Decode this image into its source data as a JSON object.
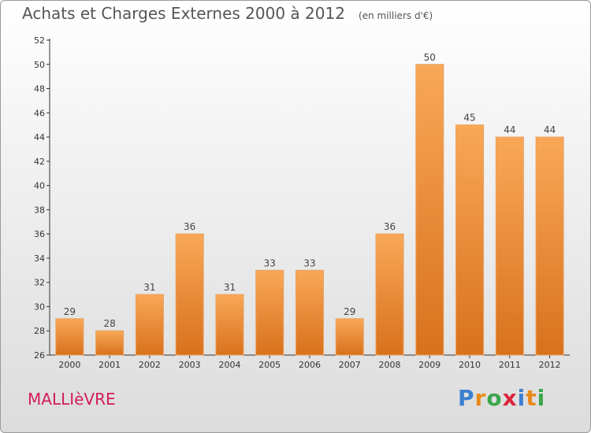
{
  "title": {
    "main": "Achats et Charges Externes 2000 à 2012",
    "unit": "(en milliers d'€)"
  },
  "commune": "MALLIèVRE",
  "brand": {
    "letters": [
      "P",
      "r",
      "o",
      "x",
      "i",
      "t",
      "i"
    ],
    "colors": [
      "#3a7fd0",
      "#e98a1a",
      "#3aa64a",
      "#d9263c",
      "#3a7fd0",
      "#e98a1a",
      "#3aa64a"
    ]
  },
  "colors": {
    "bar_light": "#f8a857",
    "bar_dark": "#d9711c",
    "axis": "#333333",
    "grid": "#cccccc"
  },
  "chart_data": {
    "type": "bar",
    "title": "Achats et Charges Externes 2000 à 2012",
    "categories": [
      "2000",
      "2001",
      "2002",
      "2003",
      "2004",
      "2005",
      "2006",
      "2007",
      "2008",
      "2009",
      "2010",
      "2011",
      "2012"
    ],
    "values": [
      29,
      28,
      31,
      36,
      31,
      33,
      33,
      29,
      36,
      50,
      45,
      44,
      44
    ],
    "ylim": [
      26,
      52
    ],
    "yticks": [
      26,
      28,
      30,
      32,
      34,
      36,
      38,
      40,
      42,
      44,
      46,
      48,
      50,
      52
    ],
    "xlabel": "",
    "ylabel": "",
    "grid": false,
    "legend": "none"
  }
}
